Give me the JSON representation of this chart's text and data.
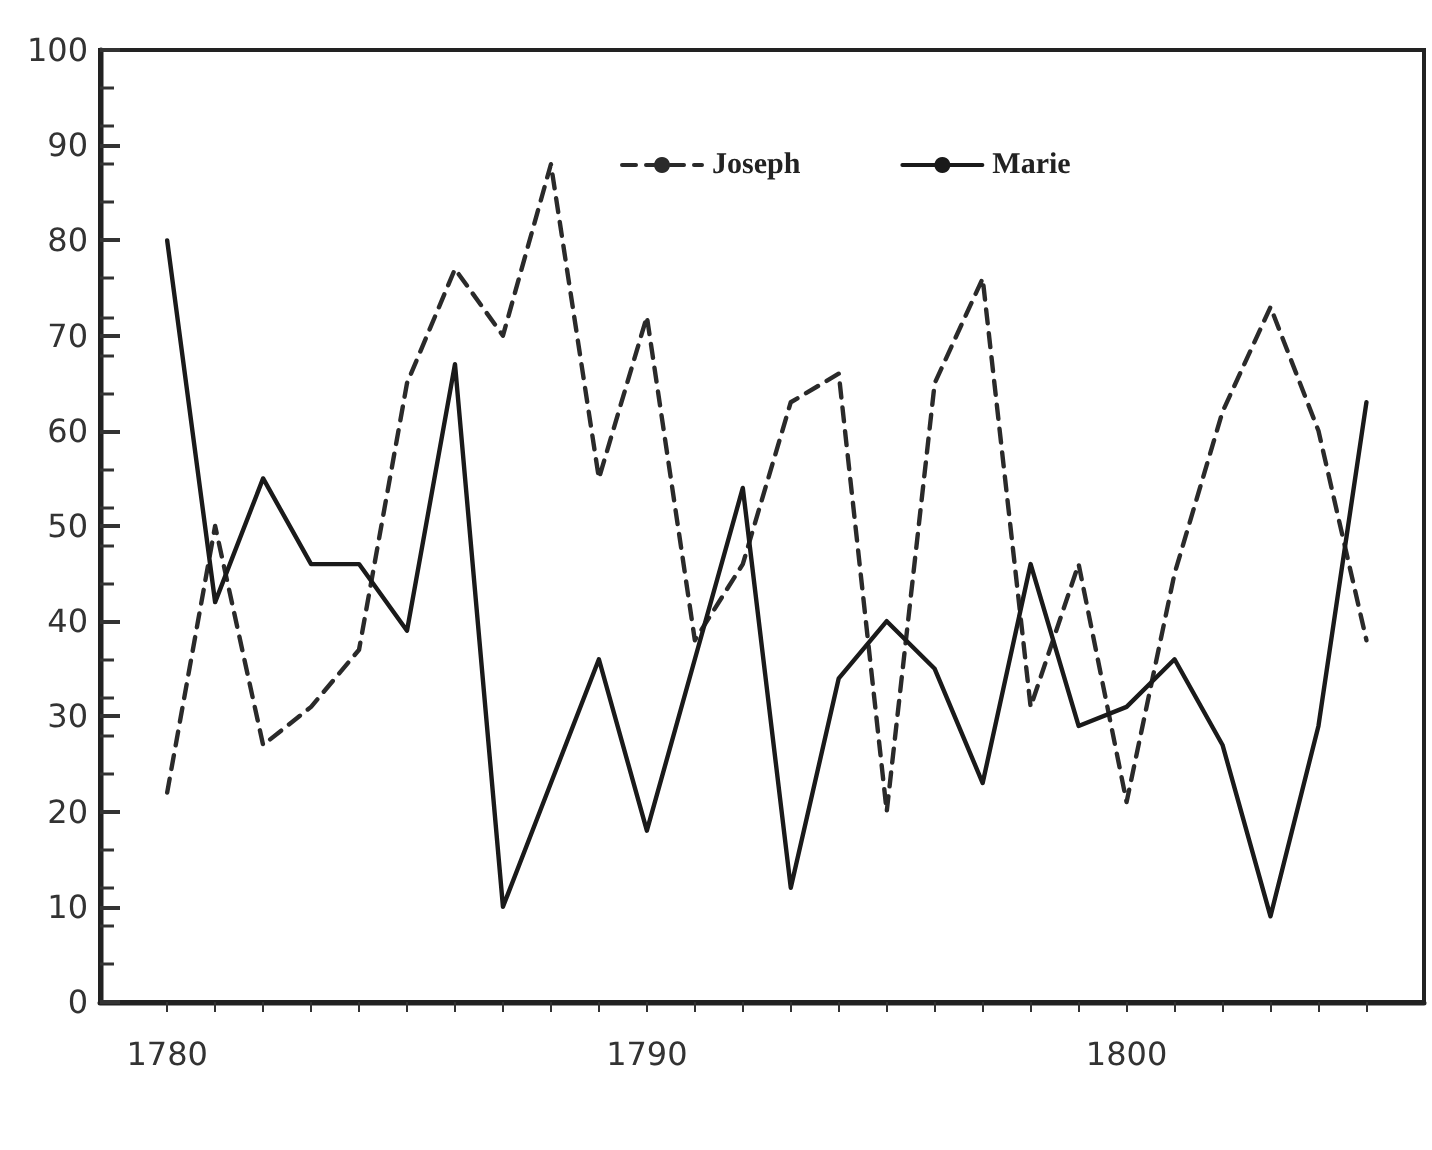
{
  "chart_data": {
    "type": "line",
    "x": [
      1780,
      1781,
      1782,
      1783,
      1784,
      1785,
      1786,
      1787,
      1788,
      1789,
      1790,
      1791,
      1792,
      1793,
      1794,
      1795,
      1796,
      1797,
      1798,
      1799,
      1800,
      1801,
      1802,
      1803,
      1804,
      1805
    ],
    "series": [
      {
        "name": "Joseph",
        "color": "#2a2a2a",
        "line_style": "dashed",
        "values": [
          22,
          50,
          27,
          31,
          37,
          65,
          77,
          70,
          88,
          55,
          72,
          38,
          46,
          63,
          66,
          20,
          65,
          76,
          31,
          46,
          21,
          45,
          62,
          73,
          60,
          38
        ]
      },
      {
        "name": "Marie",
        "color": "#1a1a1a",
        "line_style": "solid",
        "values": [
          80,
          42,
          55,
          46,
          46,
          39,
          67,
          10,
          23,
          36,
          18,
          36,
          54,
          12,
          34,
          40,
          35,
          23,
          46,
          29,
          31,
          36,
          27,
          9,
          29,
          63
        ]
      }
    ],
    "xlim": [
      1778.6,
      1806.2
    ],
    "xticks": [
      1780,
      {
        "value": 1781,
        "label": null
      },
      {
        "value": 1782,
        "label": null
      },
      {
        "value": 1783,
        "label": null
      },
      {
        "value": 1784,
        "label": null
      },
      {
        "value": 1785,
        "label": null
      },
      {
        "value": 1786,
        "label": null
      },
      {
        "value": 1787,
        "label": null
      },
      {
        "value": 1788,
        "label": null
      },
      {
        "value": 1789,
        "label": null
      },
      1790,
      {
        "value": 1791,
        "label": null
      },
      {
        "value": 1792,
        "label": null
      },
      {
        "value": 1793,
        "label": null
      },
      {
        "value": 1794,
        "label": null
      },
      {
        "value": 1795,
        "label": null
      },
      {
        "value": 1796,
        "label": null
      },
      {
        "value": 1797,
        "label": null
      },
      {
        "value": 1798,
        "label": null
      },
      {
        "value": 1799,
        "label": null
      },
      1800,
      {
        "value": 1801,
        "label": null
      },
      {
        "value": 1802,
        "label": null
      },
      {
        "value": 1803,
        "label": null
      },
      {
        "value": 1804,
        "label": null
      },
      {
        "value": 1805,
        "label": null
      }
    ],
    "ylim": [
      0,
      100
    ],
    "yticks": [
      0,
      10,
      20,
      30,
      40,
      50,
      60,
      70,
      80,
      90,
      100
    ],
    "grid": false,
    "legend": "top",
    "marker": "none"
  }
}
